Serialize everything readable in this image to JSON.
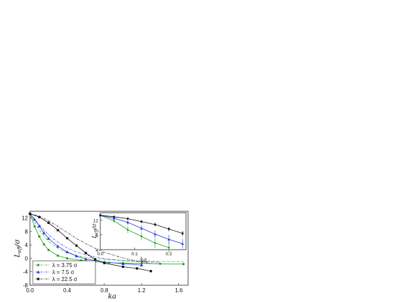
{
  "chart_data": [
    {
      "type": "line",
      "title": "",
      "xlabel": "ka",
      "ylabel": "L_eff/σ",
      "ylabel_main": "L",
      "ylabel_sub": "eff",
      "ylabel_rest": "/σ",
      "xlim": [
        0.0,
        1.7
      ],
      "ylim": [
        -8,
        14
      ],
      "xticks": [
        "0.0",
        "0.4",
        "0.8",
        "1.2",
        "1.6"
      ],
      "xtick_values": [
        0.0,
        0.4,
        0.8,
        1.2,
        1.6
      ],
      "yticks": [
        "-8",
        "-4",
        "0",
        "4",
        "8",
        "12"
      ],
      "ytick_values": [
        -8,
        -4,
        0,
        4,
        8,
        12
      ],
      "legend_position": "lower-left",
      "series": [
        {
          "name": "λ = 3.75 σ",
          "color": "#1aa31a",
          "marker": "circle",
          "x": [
            0.0,
            0.05,
            0.1,
            0.15,
            0.2,
            0.3,
            0.4,
            0.55,
            0.7,
            0.85,
            1.0,
            1.2,
            1.4,
            1.65
          ],
          "y": [
            13.3,
            9.5,
            6.5,
            4.2,
            2.5,
            0.8,
            0.0,
            -0.6,
            -1.0,
            -1.3,
            -1.4,
            -1.5,
            -1.6,
            -1.7
          ],
          "theory_x": [
            0.0,
            0.1,
            0.2,
            0.3,
            0.4,
            0.5,
            0.6,
            0.8,
            1.0,
            1.2,
            1.4,
            1.65
          ],
          "theory_y": [
            13.3,
            8.5,
            5.0,
            3.0,
            1.7,
            0.9,
            0.3,
            -0.3,
            -0.6,
            -0.8,
            -0.9,
            -1.0
          ]
        },
        {
          "name": "λ = 7.5 σ",
          "color": "#2233dd",
          "marker": "triangle",
          "x": [
            0.0,
            0.05,
            0.1,
            0.15,
            0.2,
            0.3,
            0.4,
            0.5,
            0.6,
            0.8,
            1.0,
            1.2
          ],
          "y": [
            13.3,
            11.6,
            9.6,
            7.6,
            5.9,
            3.6,
            1.9,
            0.7,
            -0.2,
            -1.1,
            -1.6,
            -2.0
          ],
          "theory_x": [
            0.0,
            0.1,
            0.2,
            0.3,
            0.4,
            0.5,
            0.6,
            0.8,
            1.0,
            1.2,
            1.4
          ],
          "theory_y": [
            13.3,
            10.0,
            7.0,
            4.8,
            3.1,
            1.9,
            1.0,
            -0.1,
            -0.7,
            -1.0,
            -1.2
          ]
        },
        {
          "name": "λ = 22.5 σ",
          "color": "#111111",
          "marker": "square",
          "x": [
            0.0,
            0.1,
            0.2,
            0.3,
            0.4,
            0.5,
            0.6,
            0.7,
            0.8,
            1.0,
            1.15,
            1.3
          ],
          "y": [
            13.3,
            12.3,
            10.6,
            8.4,
            6.0,
            3.8,
            1.6,
            -0.3,
            -1.4,
            -2.5,
            -3.0,
            -3.8
          ],
          "theory_x": [
            0.0,
            0.1,
            0.2,
            0.3,
            0.4,
            0.5,
            0.6,
            0.7,
            0.8,
            1.0,
            1.2,
            1.3
          ],
          "theory_y": [
            13.3,
            12.6,
            11.2,
            9.5,
            7.7,
            5.9,
            4.4,
            3.0,
            1.8,
            0.1,
            -1.1,
            -1.5
          ]
        }
      ]
    },
    {
      "type": "line",
      "title": "",
      "xlabel": "ka",
      "ylabel": "L_eff/σ",
      "ylabel_main": "L",
      "ylabel_sub": "eff",
      "ylabel_rest": "/σ",
      "xlim": [
        0.0,
        0.25
      ],
      "ylim": [
        4,
        14
      ],
      "xticks": [
        "0.0",
        "0.1",
        "0.2"
      ],
      "xtick_values": [
        0.0,
        0.1,
        0.2
      ],
      "yticks": [
        "4",
        "8",
        "12"
      ],
      "ytick_values": [
        4,
        8,
        12
      ],
      "series": [
        {
          "name": "λ = 3.75 σ",
          "color": "#1aa31a",
          "marker": "circle",
          "x": [
            0.0,
            0.04,
            0.08,
            0.12,
            0.16,
            0.2
          ],
          "y": [
            13.3,
            11.8,
            9.4,
            7.6,
            5.8,
            4.6
          ],
          "err": [
            0.2,
            0.5,
            0.9,
            1.1,
            1.3,
            1.5
          ]
        },
        {
          "name": "λ = 7.5 σ",
          "color": "#2233dd",
          "marker": "triangle",
          "x": [
            0.0,
            0.04,
            0.08,
            0.12,
            0.16,
            0.2,
            0.24
          ],
          "y": [
            13.3,
            12.5,
            11.4,
            9.8,
            8.2,
            6.8,
            5.6
          ],
          "err": [
            0.2,
            0.4,
            0.6,
            0.8,
            1.0,
            1.2,
            1.3
          ]
        },
        {
          "name": "λ = 22.5 σ",
          "color": "#111111",
          "marker": "square",
          "x": [
            0.0,
            0.04,
            0.08,
            0.12,
            0.16,
            0.2,
            0.24
          ],
          "y": [
            13.3,
            12.9,
            12.4,
            11.6,
            10.8,
            9.6,
            8.4
          ],
          "err": [
            0.1,
            0.2,
            0.3,
            0.4,
            0.5,
            0.6,
            0.7
          ]
        }
      ]
    }
  ]
}
